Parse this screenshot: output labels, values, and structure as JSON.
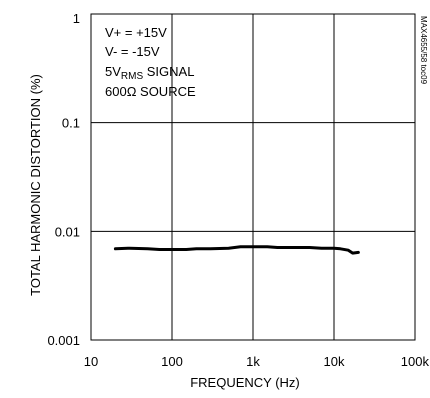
{
  "chart_data": {
    "type": "line",
    "title": "",
    "xlabel": "FREQUENCY (Hz)",
    "ylabel": "TOTAL HARMONIC DISTORTION (%)",
    "x_scale": "log",
    "y_scale": "log",
    "xlim": [
      10,
      100000
    ],
    "ylim": [
      0.001,
      1
    ],
    "grid": true,
    "x_ticks": [
      {
        "value": 10,
        "label": "10"
      },
      {
        "value": 100,
        "label": "100"
      },
      {
        "value": 1000,
        "label": "1k"
      },
      {
        "value": 10000,
        "label": "10k"
      },
      {
        "value": 100000,
        "label": "100k"
      }
    ],
    "y_ticks": [
      {
        "value": 1,
        "label": "1"
      },
      {
        "value": 0.1,
        "label": "0.1"
      },
      {
        "value": 0.01,
        "label": "0.01"
      },
      {
        "value": 0.001,
        "label": "0.001"
      }
    ],
    "annotations": {
      "line1": "V+ = +15V",
      "line2": "V- = -15V",
      "line3_prefix": "5V",
      "line3_sub": "RMS",
      "line3_suffix": " SIGNAL",
      "line4": "600Ω SOURCE"
    },
    "figure_code": "MAX4655/58 toc09",
    "series": [
      {
        "x": [
          20,
          30,
          50,
          70,
          100,
          150,
          200,
          300,
          500,
          700,
          1000,
          1500,
          2000,
          3000,
          5000,
          7000,
          10000,
          12000,
          15000,
          17000,
          20000
        ],
        "y": [
          0.0069,
          0.007,
          0.0069,
          0.0068,
          0.0068,
          0.0068,
          0.0069,
          0.0069,
          0.007,
          0.0072,
          0.0072,
          0.0072,
          0.0071,
          0.0071,
          0.0071,
          0.007,
          0.007,
          0.0069,
          0.0067,
          0.0063,
          0.0064
        ]
      }
    ],
    "colors": {
      "line": "#000000",
      "grid": "#000000"
    }
  }
}
